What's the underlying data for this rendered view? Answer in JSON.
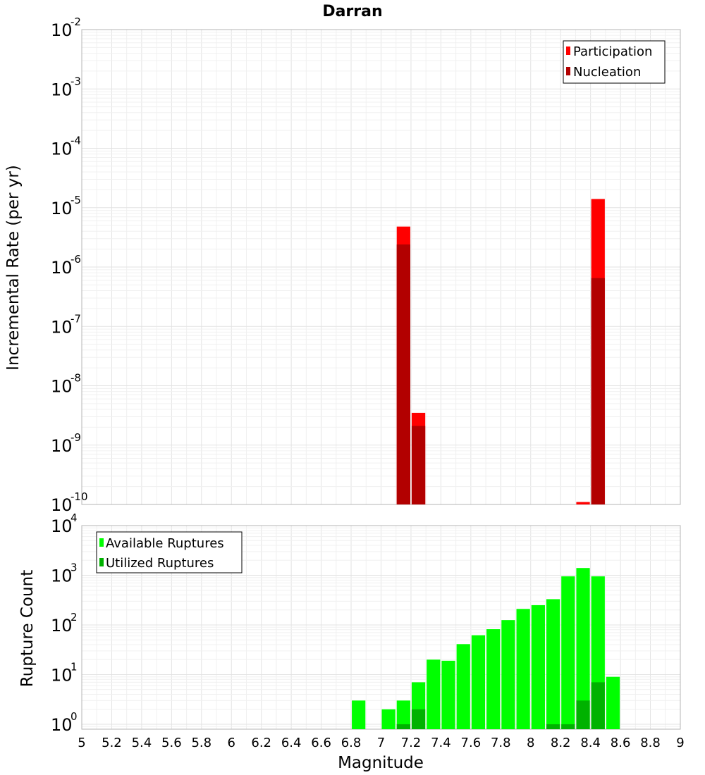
{
  "title": "Darran",
  "chart_data": [
    {
      "type": "bar",
      "ylabel": "Incremental Rate (per yr)",
      "yscale": "log",
      "ylim_exponents": [
        -10,
        -2
      ],
      "y_tick_base": "10",
      "y_tick_exponents": [
        "-2",
        "-3",
        "-4",
        "-5",
        "-6",
        "-7",
        "-8",
        "-9",
        "-10"
      ],
      "xlim": [
        5,
        9
      ],
      "bin_width": 0.1,
      "grid": true,
      "legend_position": "top-right",
      "colors": {
        "Participation": "#ff0000",
        "Nucleation": "#b20000"
      },
      "series": [
        {
          "name": "Participation",
          "x": [
            7.15,
            7.25,
            8.35,
            8.45
          ],
          "values": [
            4.8e-06,
            3.5e-09,
            1.1e-10,
            1.4e-05
          ]
        },
        {
          "name": "Nucleation",
          "x": [
            7.15,
            7.25,
            8.45
          ],
          "values": [
            2.4e-06,
            2.1e-09,
            6.5e-07
          ]
        }
      ]
    },
    {
      "type": "bar",
      "ylabel": "Rupture Count",
      "xlabel": "Magnitude",
      "yscale": "log",
      "ylim_exponents": [
        -0.1,
        4
      ],
      "y_tick_base": "10",
      "y_tick_exponents": [
        "4",
        "3",
        "2",
        "1",
        "0"
      ],
      "xlim": [
        5,
        9
      ],
      "x_ticks": [
        "5",
        "5.2",
        "5.4",
        "5.6",
        "5.8",
        "6",
        "6.2",
        "6.4",
        "6.6",
        "6.8",
        "7",
        "7.2",
        "7.4",
        "7.6",
        "7.8",
        "8",
        "8.2",
        "8.4",
        "8.6",
        "8.8",
        "9"
      ],
      "bin_width": 0.1,
      "grid": true,
      "legend_position": "top-left",
      "colors": {
        "Available Ruptures": "#00ff00",
        "Utilized Ruptures": "#00b200"
      },
      "series": [
        {
          "name": "Available Ruptures",
          "x": [
            6.85,
            7.05,
            7.15,
            7.25,
            7.35,
            7.45,
            7.55,
            7.65,
            7.75,
            7.85,
            7.95,
            8.05,
            8.15,
            8.25,
            8.35,
            8.45,
            8.55
          ],
          "values": [
            3,
            2,
            3,
            7,
            20,
            19,
            41,
            62,
            82,
            125,
            210,
            250,
            330,
            950,
            1400,
            950,
            9
          ]
        },
        {
          "name": "Utilized Ruptures",
          "x": [
            7.15,
            7.25,
            8.15,
            8.25,
            8.35,
            8.45
          ],
          "values": [
            1,
            2,
            1,
            1,
            3,
            7
          ]
        }
      ]
    }
  ]
}
